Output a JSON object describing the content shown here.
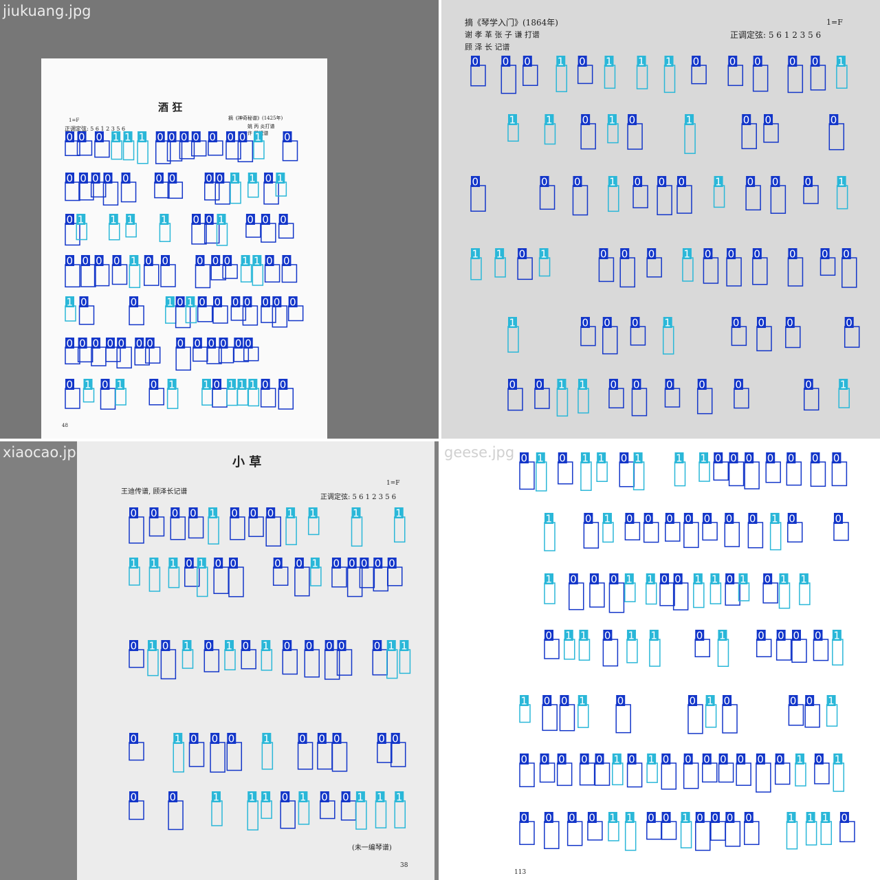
{
  "panels": [
    {
      "filename": "jiukuang.jpg",
      "title": "酒 狂",
      "source": "摘《神奇秘谱》(1425年)",
      "credits": [
        "姚 丙 炎打谱",
        "许 健记谱"
      ],
      "key": "1=F",
      "tuning": "正调定弦: 5 6 1 2 3 5 6",
      "page_number": "48"
    },
    {
      "filename": "",
      "source": "摘《琴学入门》(1864年)",
      "credits": [
        "谢 孝 革 张 子 谦 打谱",
        "顾 泽 长 记谱"
      ],
      "key": "1=F",
      "tuning": "正调定弦: 5 6 1 2 3 5 6"
    },
    {
      "filename": "xiaocao.jpg",
      "title": "小 草",
      "credits": "王迪传谱, 顾泽长记谱",
      "key": "1=F",
      "tuning": "正调定弦: 5 6 1 2 3 5 6",
      "footer": "(未一编琴谱)",
      "page_number": "38"
    },
    {
      "filename": "geese.jpg",
      "page_number": "113"
    }
  ],
  "detections": {
    "class_labels": [
      "0",
      "1"
    ],
    "colors": {
      "class_0": "#1336c9",
      "class_1": "#2ab7d8"
    }
  }
}
